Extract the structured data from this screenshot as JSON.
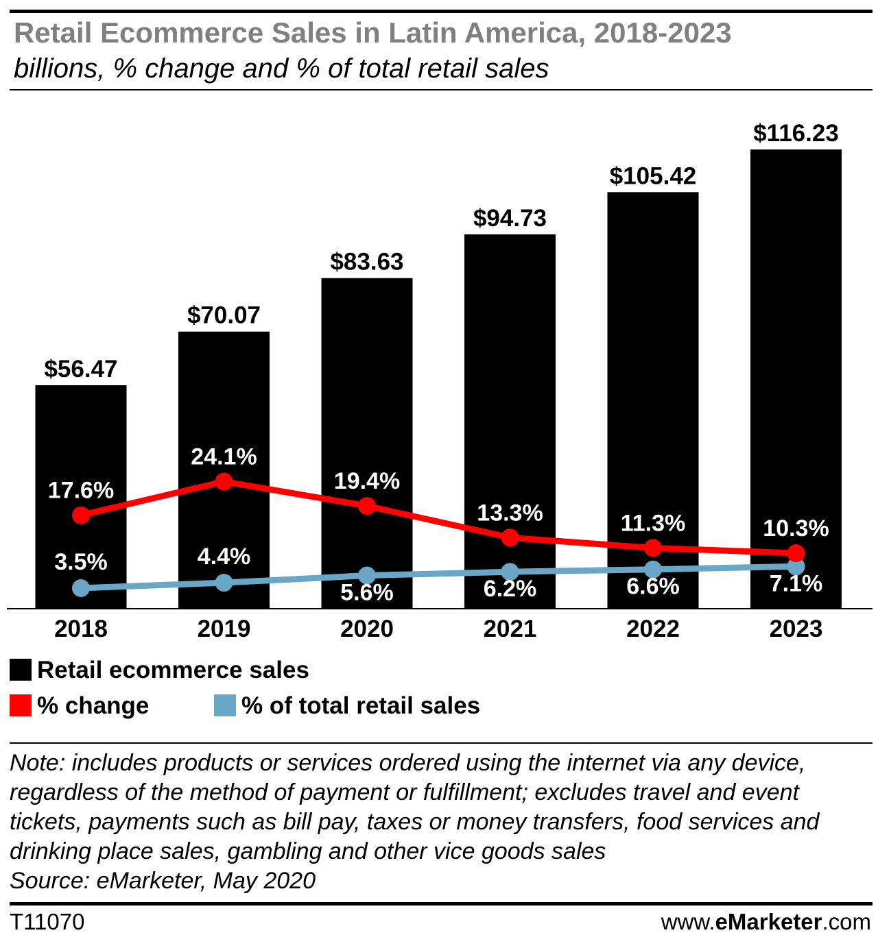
{
  "title": "Retail Ecommerce Sales in Latin America, 2018-2023",
  "subtitle": "billions, % change and % of total retail sales",
  "chart_data": {
    "type": "bar",
    "categories": [
      "2018",
      "2019",
      "2020",
      "2021",
      "2022",
      "2023"
    ],
    "series": [
      {
        "name": "Retail ecommerce sales",
        "type": "bar",
        "color": "#000000",
        "values": [
          56.47,
          70.07,
          83.63,
          94.73,
          105.42,
          116.23
        ],
        "labels": [
          "$56.47",
          "$70.07",
          "$83.63",
          "$94.73",
          "$105.42",
          "$116.23"
        ]
      },
      {
        "name": "% change",
        "type": "line",
        "color": "#ff0000",
        "values": [
          17.6,
          24.1,
          19.4,
          13.3,
          11.3,
          10.3
        ],
        "labels": [
          "17.6%",
          "24.1%",
          "19.4%",
          "13.3%",
          "11.3%",
          "10.3%"
        ]
      },
      {
        "name": "% of total retail sales",
        "type": "line",
        "color": "#6aa6c6",
        "values": [
          3.5,
          4.4,
          5.6,
          6.2,
          6.6,
          7.1
        ],
        "labels": [
          "3.5%",
          "4.4%",
          "5.6%",
          "6.2%",
          "6.6%",
          "7.1%"
        ]
      }
    ],
    "grid": false,
    "legend_position": "bottom"
  },
  "legend": {
    "items": [
      {
        "label": "Retail ecommerce sales",
        "color": "#000000"
      },
      {
        "label": "% change",
        "color": "#ff0000"
      },
      {
        "label": "% of total retail sales",
        "color": "#6aa6c6"
      }
    ]
  },
  "footer": {
    "note": "Note: includes products or services ordered using the internet via any device, regardless of the method of payment or fulfillment; excludes travel and event tickets, payments such as bill pay, taxes or money transfers, food services and drinking place sales, gambling and other vice goods sales",
    "source": "Source: eMarketer, May 2020",
    "chart_id": "T11070",
    "brand_prefix": "www.",
    "brand_name": "eMarketer",
    "brand_suffix": ".com"
  }
}
